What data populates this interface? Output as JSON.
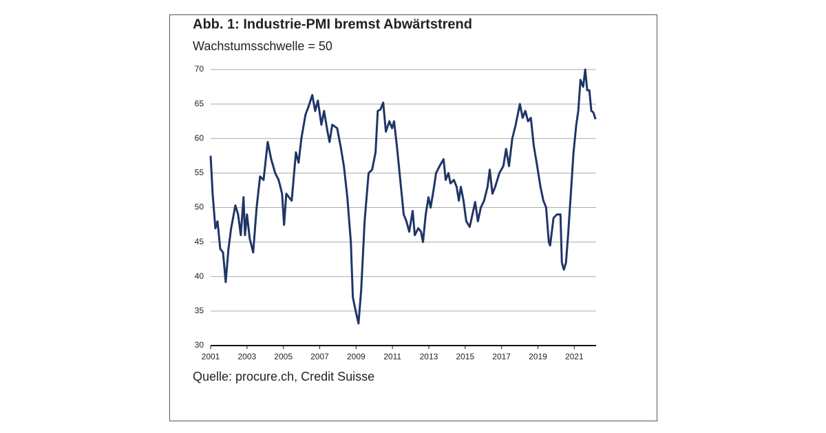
{
  "chart_data": {
    "type": "line",
    "title": "Abb. 1: Industrie-PMI bremst Abwärtstrend",
    "subtitle": "Wachstumsschwelle = 50",
    "source": "Quelle: procure.ch, Credit Suisse",
    "x": [
      2001.0,
      2001.11,
      2001.26,
      2001.38,
      2001.53,
      2001.68,
      2001.83,
      2001.98,
      2002.13,
      2002.36,
      2002.51,
      2002.66,
      2002.81,
      2002.89,
      2003.0,
      2003.15,
      2003.34,
      2003.53,
      2003.72,
      2003.91,
      2004.14,
      2004.33,
      2004.55,
      2004.74,
      2004.93,
      2005.04,
      2005.16,
      2005.31,
      2005.46,
      2005.69,
      2005.84,
      2005.99,
      2006.22,
      2006.37,
      2006.59,
      2006.75,
      2006.9,
      2007.09,
      2007.24,
      2007.43,
      2007.54,
      2007.69,
      2007.96,
      2008.14,
      2008.33,
      2008.52,
      2008.71,
      2008.82,
      2008.94,
      2009.13,
      2009.28,
      2009.47,
      2009.69,
      2009.88,
      2010.07,
      2010.19,
      2010.34,
      2010.49,
      2010.64,
      2010.83,
      2010.98,
      2011.09,
      2011.24,
      2011.43,
      2011.62,
      2011.77,
      2011.92,
      2012.11,
      2012.23,
      2012.42,
      2012.57,
      2012.68,
      2012.83,
      2012.98,
      2013.1,
      2013.29,
      2013.4,
      2013.59,
      2013.81,
      2013.93,
      2014.08,
      2014.19,
      2014.38,
      2014.53,
      2014.65,
      2014.76,
      2014.91,
      2015.06,
      2015.25,
      2015.4,
      2015.55,
      2015.7,
      2015.86,
      2016.04,
      2016.23,
      2016.35,
      2016.5,
      2016.65,
      2016.88,
      2017.1,
      2017.25,
      2017.41,
      2017.59,
      2017.78,
      2018.01,
      2018.16,
      2018.31,
      2018.46,
      2018.61,
      2018.77,
      2018.96,
      2019.14,
      2019.3,
      2019.45,
      2019.6,
      2019.67,
      2019.86,
      2020.05,
      2020.24,
      2020.32,
      2020.43,
      2020.54,
      2020.66,
      2020.81,
      2020.96,
      2021.11,
      2021.22,
      2021.34,
      2021.49,
      2021.6,
      2021.71,
      2021.83,
      2021.94,
      2022.05,
      2022.17
    ],
    "series": [
      {
        "color": "#1f3566",
        "values": [
          57.5,
          52,
          47,
          48,
          44,
          43.5,
          39.2,
          44,
          47,
          50.3,
          49,
          46,
          51.5,
          46,
          49,
          45.5,
          43.5,
          50,
          54.5,
          54,
          59.5,
          57,
          55,
          54,
          52,
          47.5,
          52,
          51.5,
          51,
          58,
          56.5,
          60,
          63.5,
          64.5,
          66.3,
          64,
          65.5,
          62,
          64,
          61,
          59.5,
          62,
          61.5,
          59,
          56,
          51.5,
          45,
          37,
          35.5,
          33.2,
          38,
          48,
          55,
          55.5,
          58,
          64,
          64.2,
          65.2,
          61,
          62.5,
          61.5,
          62.5,
          59,
          54,
          49,
          48,
          46.5,
          49.5,
          46,
          47,
          46.5,
          45,
          49,
          51.5,
          50,
          53,
          55,
          56,
          57,
          54,
          55,
          53.5,
          54,
          53,
          51,
          53,
          51,
          48,
          47.2,
          49,
          50.8,
          48,
          50,
          51,
          53,
          55.5,
          52,
          53,
          55,
          56,
          58.5,
          56,
          60,
          62,
          65,
          63,
          64,
          62.5,
          63,
          59,
          56,
          53,
          51,
          50,
          45,
          44.5,
          48.5,
          49,
          49,
          42,
          41,
          42,
          46,
          52,
          58,
          62,
          64,
          68.5,
          67.5,
          70,
          67,
          67,
          64,
          63.8,
          62.8
        ]
      }
    ],
    "xlim": [
      2001,
      2022.2
    ],
    "xticks": [
      2001,
      2003,
      2005,
      2007,
      2009,
      2011,
      2013,
      2015,
      2017,
      2019,
      2021
    ],
    "ylim": [
      30,
      70
    ],
    "yticks": [
      30,
      35,
      40,
      45,
      50,
      55,
      60,
      65,
      70
    ],
    "grid": true
  }
}
